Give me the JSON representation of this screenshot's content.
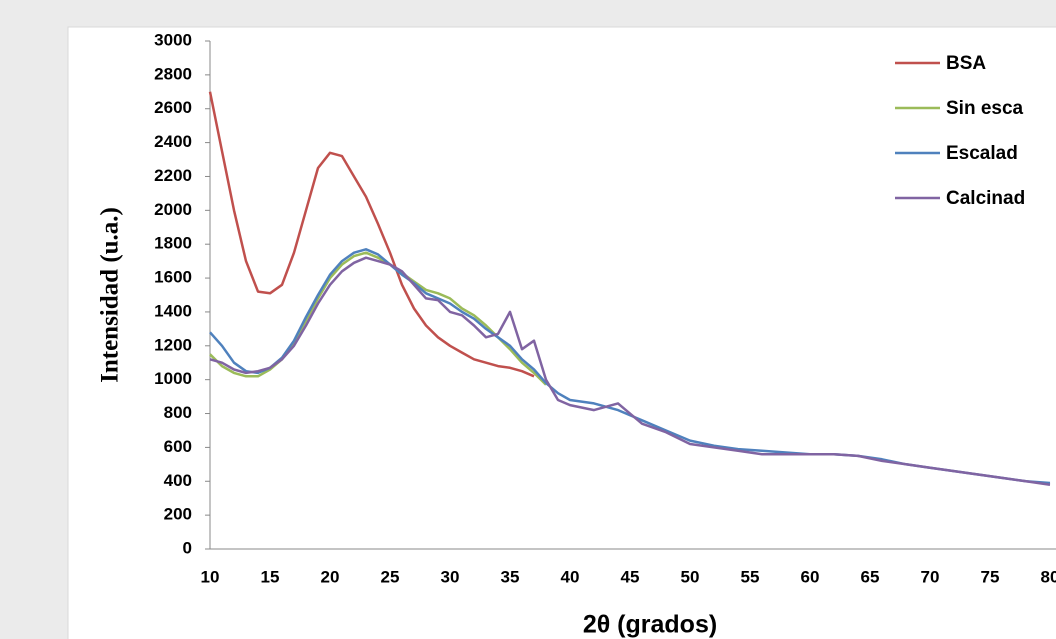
{
  "chart_data": {
    "type": "line",
    "x_label": "2θ (grados)",
    "y_label": "Intensidad (u.a.)",
    "x": [
      10,
      11,
      12,
      13,
      14,
      15,
      16,
      17,
      18,
      19,
      20,
      21,
      22,
      23,
      24,
      25,
      26,
      27,
      28,
      29,
      30,
      31,
      32,
      33,
      34,
      35,
      36,
      37,
      38,
      39,
      40,
      42,
      44,
      46,
      48,
      50,
      52,
      54,
      56,
      58,
      60,
      62,
      64,
      66,
      68,
      70,
      72,
      74,
      76,
      78,
      80
    ],
    "series": [
      {
        "name": "BSA",
        "color": "#c0504d",
        "values": [
          2700,
          2350,
          2000,
          1700,
          1520,
          1510,
          1560,
          1750,
          2000,
          2250,
          2340,
          2320,
          2200,
          2080,
          1920,
          1750,
          1560,
          1420,
          1320,
          1250,
          1200,
          1160,
          1120,
          1100,
          1080,
          1070,
          1050,
          1020,
          null,
          null,
          null,
          null,
          null,
          null,
          null,
          null,
          null,
          null,
          null,
          null,
          null,
          null,
          null,
          null,
          null,
          null,
          null,
          null,
          null,
          null,
          null
        ]
      },
      {
        "name": "Sin esca",
        "color": "#9bbb59",
        "values": [
          1150,
          1080,
          1040,
          1020,
          1020,
          1060,
          1120,
          1220,
          1350,
          1480,
          1600,
          1680,
          1730,
          1750,
          1720,
          1680,
          1630,
          1580,
          1530,
          1510,
          1480,
          1420,
          1380,
          1320,
          1250,
          1180,
          1100,
          1040,
          970,
          null,
          null,
          null,
          null,
          null,
          null,
          null,
          null,
          null,
          null,
          null,
          null,
          null,
          null,
          null,
          null,
          null,
          null,
          null,
          null,
          null,
          null
        ]
      },
      {
        "name": "Escalad",
        "color": "#4f81bd",
        "values": [
          1280,
          1200,
          1100,
          1050,
          1040,
          1070,
          1130,
          1230,
          1370,
          1500,
          1620,
          1700,
          1750,
          1770,
          1740,
          1680,
          1620,
          1570,
          1510,
          1480,
          1450,
          1400,
          1360,
          1300,
          1250,
          1200,
          1120,
          1060,
          980,
          920,
          880,
          860,
          820,
          760,
          700,
          640,
          610,
          590,
          580,
          570,
          560,
          560,
          550,
          530,
          500,
          480,
          460,
          440,
          420,
          400,
          390
        ]
      },
      {
        "name": "Calcinad",
        "color": "#8064a2",
        "values": [
          1120,
          1100,
          1060,
          1040,
          1050,
          1070,
          1120,
          1200,
          1320,
          1450,
          1560,
          1640,
          1690,
          1720,
          1700,
          1680,
          1640,
          1560,
          1480,
          1470,
          1400,
          1380,
          1320,
          1250,
          1270,
          1400,
          1180,
          1230,
          1000,
          880,
          850,
          820,
          860,
          740,
          690,
          620,
          600,
          580,
          560,
          560,
          560,
          560,
          550,
          520,
          500,
          480,
          460,
          440,
          420,
          400,
          380
        ]
      }
    ],
    "xlim": [
      10,
      80
    ],
    "xticks": [
      10,
      15,
      20,
      25,
      30,
      35,
      40,
      45,
      50,
      55,
      60,
      65,
      70,
      75,
      80
    ],
    "ylim": [
      0,
      3000
    ],
    "yticks": [
      0,
      200,
      400,
      600,
      800,
      1000,
      1200,
      1400,
      1600,
      1800,
      2000,
      2200,
      2400,
      2600,
      2800,
      3000
    ],
    "grid": false
  }
}
